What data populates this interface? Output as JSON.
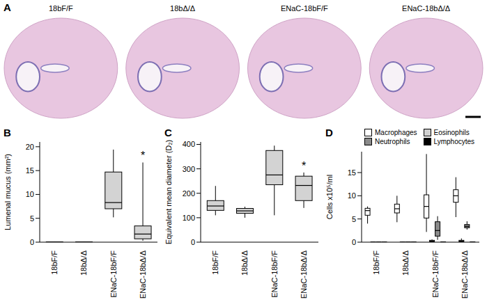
{
  "panel_a": {
    "panel_label": "A",
    "images": [
      "18bF/F",
      "18bΔ/Δ",
      "ENaC-18bF/F",
      "ENaC-18bΔ/Δ"
    ]
  },
  "chart_data": [
    {
      "panel_label": "B",
      "type": "box",
      "y_label": "Lumenal mucus (mm²)",
      "categories": [
        "18bF/F",
        "18bΔ/Δ",
        "ENaC-18bF/F",
        "ENaC-18bΔ/Δ"
      ],
      "color": "#d3d3d3",
      "values": [
        {
          "min": 0,
          "q1": 0,
          "median": 0,
          "q3": 0.05,
          "max": 0.1
        },
        {
          "min": 0,
          "q1": 0,
          "median": 0,
          "q3": 0.05,
          "max": 0.1
        },
        {
          "min": 5.2,
          "q1": 7.0,
          "median": 8.3,
          "q3": 14.7,
          "max": 19.4
        },
        {
          "min": 0.3,
          "q1": 0.7,
          "median": 1.7,
          "q3": 3.4,
          "max": 16.7
        }
      ],
      "ylim": [
        0,
        21
      ],
      "yticks": [
        0,
        5,
        10,
        15,
        20
      ],
      "annotations": [
        {
          "text": "*",
          "category_index": 3
        }
      ]
    },
    {
      "panel_label": "C",
      "type": "box",
      "y_label": "Equivalent mean diameter (D₂)",
      "categories": [
        "18bF/F",
        "18bΔ/Δ",
        "ENaC-18bF/F",
        "ENaC-18bΔ/Δ"
      ],
      "color": "#d3d3d3",
      "values": [
        {
          "min": 110,
          "q1": 130,
          "median": 148,
          "q3": 170,
          "max": 230
        },
        {
          "min": 100,
          "q1": 118,
          "median": 128,
          "q3": 138,
          "max": 145
        },
        {
          "min": 110,
          "q1": 235,
          "median": 275,
          "q3": 375,
          "max": 395
        },
        {
          "min": 140,
          "q1": 170,
          "median": 232,
          "q3": 270,
          "max": 285
        }
      ],
      "ylim": [
        0,
        410
      ],
      "yticks": [
        0,
        100,
        200,
        300,
        400
      ],
      "annotations": [
        {
          "text": "*",
          "category_index": 3
        }
      ]
    },
    {
      "panel_label": "D",
      "type": "box",
      "y_label": "Cells x10⁵/ml",
      "categories": [
        "18bF/F",
        "18bΔ/Δ",
        "ENaC-18bF/F",
        "ENaC-18bΔ/Δ"
      ],
      "series": [
        {
          "name": "Macrophages",
          "color": "#ffffff",
          "values": [
            {
              "min": 4,
              "q1": 5.8,
              "median": 6.8,
              "q3": 7.3,
              "max": 7.7
            },
            {
              "min": 4.3,
              "q1": 6.3,
              "median": 7.2,
              "q3": 8.2,
              "max": 10
            },
            {
              "min": 2.2,
              "q1": 5.2,
              "median": 7.7,
              "q3": 10.2,
              "max": 19
            },
            {
              "min": 5.4,
              "q1": 8.6,
              "median": 10,
              "q3": 11.3,
              "max": 14
            }
          ]
        },
        {
          "name": "Eosinophils",
          "color": "#d0d0d0",
          "values": [
            {
              "min": 0,
              "q1": 0,
              "median": 0,
              "q3": 0.02,
              "max": 0.05
            },
            {
              "min": 0,
              "q1": 0,
              "median": 0,
              "q3": 0.02,
              "max": 0.05
            },
            {
              "min": 0,
              "q1": 0.1,
              "median": 0.2,
              "q3": 0.4,
              "max": 0.6
            },
            {
              "min": 0,
              "q1": 0.1,
              "median": 0.2,
              "q3": 0.4,
              "max": 0.8
            }
          ]
        },
        {
          "name": "Neutrophils",
          "color": "#8a8a8a",
          "values": [
            {
              "min": 0,
              "q1": 0,
              "median": 0,
              "q3": 0.02,
              "max": 0.05
            },
            {
              "min": 0,
              "q1": 0,
              "median": 0,
              "q3": 0.02,
              "max": 0.05
            },
            {
              "min": 0.5,
              "q1": 1.3,
              "median": 2.5,
              "q3": 4.4,
              "max": 5.6
            },
            {
              "min": 2.7,
              "q1": 3.1,
              "median": 3.4,
              "q3": 3.8,
              "max": 4.5
            }
          ]
        },
        {
          "name": "Lymphocytes",
          "color": "#000000",
          "values": [
            {
              "min": 0,
              "q1": 0,
              "median": 0,
              "q3": 0.02,
              "max": 0.05
            },
            {
              "min": 0,
              "q1": 0,
              "median": 0,
              "q3": 0.02,
              "max": 0.05
            },
            {
              "min": 0,
              "q1": 0,
              "median": 0.02,
              "q3": 0.05,
              "max": 0.1
            },
            {
              "min": 0,
              "q1": 0,
              "median": 0.02,
              "q3": 0.05,
              "max": 0.1
            }
          ]
        }
      ],
      "ylim": [
        0,
        19.5
      ],
      "yticks": [
        0,
        5,
        10,
        15
      ],
      "legend": "top"
    }
  ]
}
